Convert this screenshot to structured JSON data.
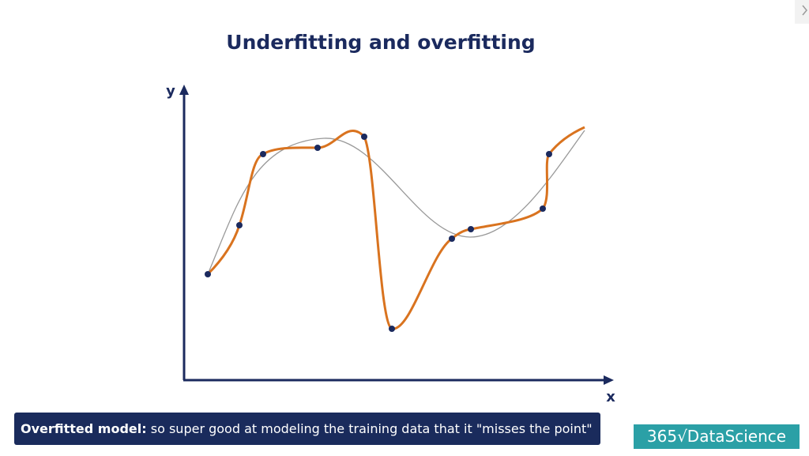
{
  "title": "Underfitting and overfitting",
  "axes": {
    "y": "y",
    "x": "x"
  },
  "caption": {
    "bold": "Overfitted model:",
    "text": "so super good at modeling the training data that it \"misses the point\""
  },
  "logo": "365√DataScience"
}
